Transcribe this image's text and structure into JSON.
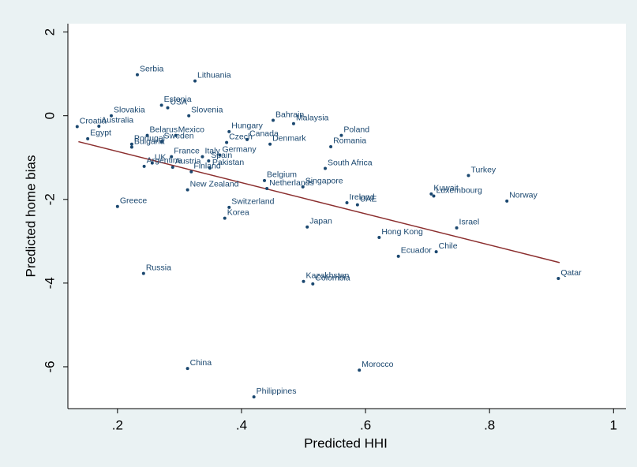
{
  "chart_data": {
    "type": "scatter",
    "x_label": "Predicted HHI",
    "y_label": "Predicted home bias",
    "xlim": [
      0.12,
      1.02
    ],
    "ylim": [
      -7,
      2.2
    ],
    "xticks": [
      {
        "value": 0.2,
        "label": ".2"
      },
      {
        "value": 0.4,
        "label": ".4"
      },
      {
        "value": 0.6,
        "label": ".6"
      },
      {
        "value": 0.8,
        "label": ".8"
      },
      1
    ],
    "yticks": [
      2,
      0,
      -2,
      -4,
      -6
    ],
    "color": "#1a476f",
    "point_labels": [
      "Serbia",
      "Lithuania",
      "Estonia",
      "USA",
      "Slovenia",
      "Slovakia",
      "Australia",
      "Croatia",
      "Egypt",
      "Belarus",
      "Mexico",
      "Sweden",
      "Bulgaria",
      "Portugal",
      "Hungary",
      "Czech",
      "Canada",
      "Denmark",
      "Bahrain",
      "Malaysia",
      "Poland",
      "Romania",
      "France",
      "Italy",
      "Spain",
      "Germany",
      "UK",
      "Argentina",
      "Austria",
      "Pakistan",
      "Finland",
      "South Africa",
      "Belgium",
      "Netherlands",
      "Singapore",
      "New Zealand",
      "Switzerland",
      "Korea",
      "Greece",
      "Ireland",
      "UAE",
      "Kuwait",
      "Luxembourg",
      "Turkey",
      "Norway",
      "Japan",
      "Israel",
      "Hong Kong",
      "Chile",
      "Ecuador",
      "Russia",
      "Qatar",
      "Kazakhstan",
      "Colombia",
      "China",
      "Morocco",
      "Philippines"
    ],
    "x": [
      0.232,
      0.325,
      0.271,
      0.281,
      0.315,
      0.19,
      0.17,
      0.135,
      0.152,
      0.248,
      0.294,
      0.271,
      0.223,
      0.223,
      0.38,
      0.376,
      0.409,
      0.446,
      0.451,
      0.484,
      0.561,
      0.544,
      0.287,
      0.337,
      0.347,
      0.365,
      0.256,
      0.243,
      0.289,
      0.349,
      0.319,
      0.535,
      0.437,
      0.441,
      0.499,
      0.313,
      0.38,
      0.373,
      0.2,
      0.57,
      0.587,
      0.706,
      0.71,
      0.766,
      0.828,
      0.506,
      0.747,
      0.622,
      0.714,
      0.653,
      0.242,
      0.911,
      0.5,
      0.515,
      0.313,
      0.59,
      0.42
    ],
    "values": [
      0.98,
      0.83,
      0.25,
      0.19,
      0.0,
      0.0,
      -0.25,
      -0.26,
      -0.55,
      -0.47,
      -0.47,
      -0.62,
      -0.75,
      -0.68,
      -0.38,
      -0.64,
      -0.57,
      -0.68,
      -0.11,
      -0.19,
      -0.47,
      -0.74,
      -0.98,
      -0.98,
      -1.08,
      -0.94,
      -1.13,
      -1.21,
      -1.23,
      -1.25,
      -1.34,
      -1.26,
      -1.55,
      -1.74,
      -1.7,
      -1.77,
      -2.19,
      -2.45,
      -2.17,
      -2.08,
      -2.13,
      -1.87,
      -1.92,
      -1.43,
      -2.04,
      -2.66,
      -2.68,
      -2.91,
      -3.25,
      -3.36,
      -3.77,
      -3.89,
      -3.96,
      -4.02,
      -6.04,
      -6.08,
      -6.72
    ],
    "fit_line": {
      "x": [
        0.137,
        0.913
      ],
      "values": [
        -0.62,
        -3.51
      ],
      "color": "#8b2e2e"
    }
  }
}
